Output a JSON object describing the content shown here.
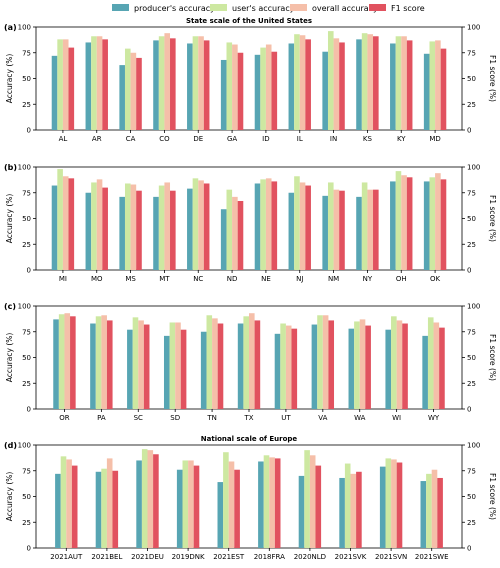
{
  "legend": [
    {
      "name": "producer's accuracy",
      "color": "#57a5b3"
    },
    {
      "name": "user's accuracy",
      "color": "#cde8a1"
    },
    {
      "name": "overall accuracy",
      "color": "#f5bfa9"
    },
    {
      "name": "F1 score",
      "color": "#e1525f"
    }
  ],
  "chart_data": [
    {
      "type": "bar",
      "tag": "(a)",
      "title": "State scale of the United States",
      "ylabel": "Accuracy (%)",
      "ylabel_right": "F1 score (%)",
      "ylim": [
        0,
        100
      ],
      "yticks": [
        0,
        25,
        50,
        75,
        100
      ],
      "categories": [
        "AL",
        "AR",
        "CA",
        "CO",
        "DE",
        "GA",
        "ID",
        "IL",
        "IN",
        "KS",
        "KY",
        "MD"
      ],
      "series": [
        {
          "name": "producer's accuracy",
          "values": [
            72,
            85,
            63,
            87,
            84,
            68,
            73,
            84,
            76,
            88,
            84,
            74
          ]
        },
        {
          "name": "user's accuracy",
          "values": [
            88,
            91,
            79,
            91,
            91,
            85,
            80,
            93,
            96,
            94,
            91,
            86
          ]
        },
        {
          "name": "overall accuracy",
          "values": [
            88,
            91,
            75,
            94,
            91,
            83,
            83,
            92,
            89,
            93,
            91,
            87
          ]
        },
        {
          "name": "F1 score",
          "values": [
            80,
            88,
            70,
            89,
            87,
            75,
            76,
            88,
            85,
            91,
            87,
            79
          ]
        }
      ]
    },
    {
      "type": "bar",
      "tag": "(b)",
      "title": "",
      "ylabel": "Accuracy (%)",
      "ylabel_right": "F1 score (%)",
      "ylim": [
        0,
        100
      ],
      "yticks": [
        0,
        25,
        50,
        75,
        100
      ],
      "categories": [
        "MI",
        "MO",
        "MS",
        "MT",
        "NC",
        "ND",
        "NE",
        "NJ",
        "NM",
        "NY",
        "OH",
        "OK"
      ],
      "series": [
        {
          "name": "producer's accuracy",
          "values": [
            82,
            75,
            71,
            71,
            79,
            59,
            84,
            75,
            72,
            71,
            86,
            86
          ]
        },
        {
          "name": "user's accuracy",
          "values": [
            98,
            85,
            84,
            82,
            89,
            78,
            88,
            91,
            85,
            85,
            96,
            90
          ]
        },
        {
          "name": "overall accuracy",
          "values": [
            91,
            88,
            83,
            85,
            87,
            71,
            89,
            85,
            78,
            78,
            92,
            94
          ]
        },
        {
          "name": "F1 score",
          "values": [
            89,
            80,
            77,
            77,
            84,
            67,
            86,
            82,
            77,
            78,
            90,
            88
          ]
        }
      ]
    },
    {
      "type": "bar",
      "tag": "(c)",
      "title": "",
      "ylabel": "Accuracy (%)",
      "ylabel_right": "F1 score (%)",
      "ylim": [
        0,
        100
      ],
      "yticks": [
        0,
        25,
        50,
        75,
        100
      ],
      "categories": [
        "OR",
        "PA",
        "SC",
        "SD",
        "TN",
        "TX",
        "UT",
        "VA",
        "WA",
        "WI",
        "WY"
      ],
      "series": [
        {
          "name": "producer's accuracy",
          "values": [
            87,
            83,
            77,
            71,
            75,
            83,
            73,
            82,
            78,
            77,
            71
          ]
        },
        {
          "name": "user's accuracy",
          "values": [
            92,
            90,
            89,
            84,
            91,
            90,
            83,
            91,
            85,
            90,
            89
          ]
        },
        {
          "name": "overall accuracy",
          "values": [
            93,
            91,
            86,
            84,
            88,
            93,
            81,
            91,
            87,
            86,
            84
          ]
        },
        {
          "name": "F1 score",
          "values": [
            90,
            86,
            82,
            77,
            83,
            86,
            78,
            86,
            81,
            83,
            79
          ]
        }
      ]
    },
    {
      "type": "bar",
      "tag": "(d)",
      "title": "National scale of Europe",
      "ylabel": "Accuracy (%)",
      "ylabel_right": "F1 score (%)",
      "ylim": [
        0,
        100
      ],
      "yticks": [
        0,
        25,
        50,
        75,
        100
      ],
      "categories": [
        "2021AUT",
        "2021BEL",
        "2021DEU",
        "2019DNK",
        "2021EST",
        "2018FRA",
        "2020NLD",
        "2021SVK",
        "2021SVN",
        "2021SWE"
      ],
      "series": [
        {
          "name": "producer's accuracy",
          "values": [
            72,
            74,
            85,
            76,
            64,
            84,
            70,
            68,
            79,
            65
          ]
        },
        {
          "name": "user's accuracy",
          "values": [
            89,
            77,
            96,
            85,
            93,
            90,
            95,
            82,
            87,
            72
          ]
        },
        {
          "name": "overall accuracy",
          "values": [
            86,
            87,
            95,
            85,
            84,
            88,
            90,
            72,
            86,
            76
          ]
        },
        {
          "name": "F1 score",
          "values": [
            80,
            75,
            91,
            80,
            76,
            87,
            80,
            74,
            83,
            68
          ]
        }
      ]
    }
  ]
}
